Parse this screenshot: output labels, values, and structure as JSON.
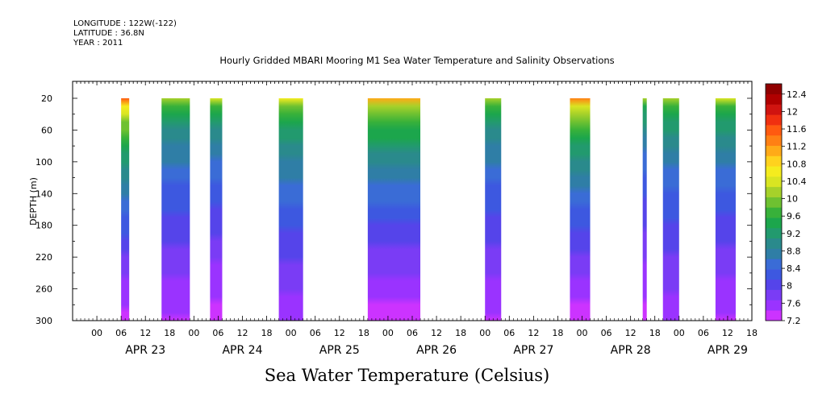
{
  "meta": {
    "longitude": "LONGITUDE : 122W(-122)",
    "latitude": "LATITUDE : 36.8N",
    "year": "YEAR : 2011"
  },
  "footer_label": "Sea Water Temperature (Celsius)",
  "chart_data": {
    "type": "heatmap",
    "title": "Hourly Gridded MBARI Mooring M1 Sea Water Temperature and Salinity Observations",
    "ylabel": "DEPTH (m)",
    "xlabel": "",
    "ylim": [
      300,
      20
    ],
    "yticks": [
      20,
      60,
      100,
      140,
      180,
      220,
      260,
      300
    ],
    "xlim_hours": [
      -6,
      162
    ],
    "xtick_hours": [
      "00",
      "06",
      "12",
      "18",
      "00",
      "06",
      "12",
      "18",
      "00",
      "06",
      "12",
      "18",
      "00",
      "06",
      "12",
      "18",
      "00",
      "06",
      "12",
      "18",
      "00",
      "06",
      "12",
      "18",
      "00",
      "06",
      "12",
      "18"
    ],
    "day_labels": [
      "APR 23",
      "APR 24",
      "APR 25",
      "APR 26",
      "APR 27",
      "APR 28",
      "APR 29"
    ],
    "colorbar": {
      "levels": [
        7.2,
        7.6,
        8,
        8.4,
        8.8,
        9.2,
        9.6,
        10,
        10.4,
        10.8,
        11.2,
        11.6,
        12,
        12.4
      ],
      "colors": [
        "#cc33ff",
        "#9a33ff",
        "#7a3cf5",
        "#5544ea",
        "#3d58e0",
        "#3a6cd6",
        "#2f7ea6",
        "#2a8a8c",
        "#229a6e",
        "#1ca64c",
        "#38b13a",
        "#6ec131",
        "#a6d12a",
        "#d9e522",
        "#f5ec1e",
        "#ffd21e",
        "#ffaa18",
        "#ff8014",
        "#ff5a10",
        "#f03010",
        "#d01410",
        "#b00000",
        "#900000"
      ]
    },
    "data_columns": [
      {
        "start_hour": 6,
        "end_hour": 8,
        "surface_temp": 11.4,
        "bottom_temp": 7.3
      },
      {
        "start_hour": 16,
        "end_hour": 23,
        "surface_temp": 10.1,
        "bottom_temp": 7.4
      },
      {
        "start_hour": 28,
        "end_hour": 31,
        "surface_temp": 10.2,
        "bottom_temp": 7.3
      },
      {
        "start_hour": 45,
        "end_hour": 51,
        "surface_temp": 10.4,
        "bottom_temp": 7.5
      },
      {
        "start_hour": 67,
        "end_hour": 80,
        "surface_temp": 10.9,
        "bottom_temp": 7.3
      },
      {
        "start_hour": 96,
        "end_hour": 100,
        "surface_temp": 10.1,
        "bottom_temp": 7.4
      },
      {
        "start_hour": 117,
        "end_hour": 122,
        "surface_temp": 11.1,
        "bottom_temp": 7.3
      },
      {
        "start_hour": 135,
        "end_hour": 136,
        "surface_temp": 10.0,
        "bottom_temp": 7.3
      },
      {
        "start_hour": 140,
        "end_hour": 144,
        "surface_temp": 10.1,
        "bottom_temp": 7.5
      },
      {
        "start_hour": 153,
        "end_hour": 158,
        "surface_temp": 10.2,
        "bottom_temp": 7.4
      }
    ]
  }
}
